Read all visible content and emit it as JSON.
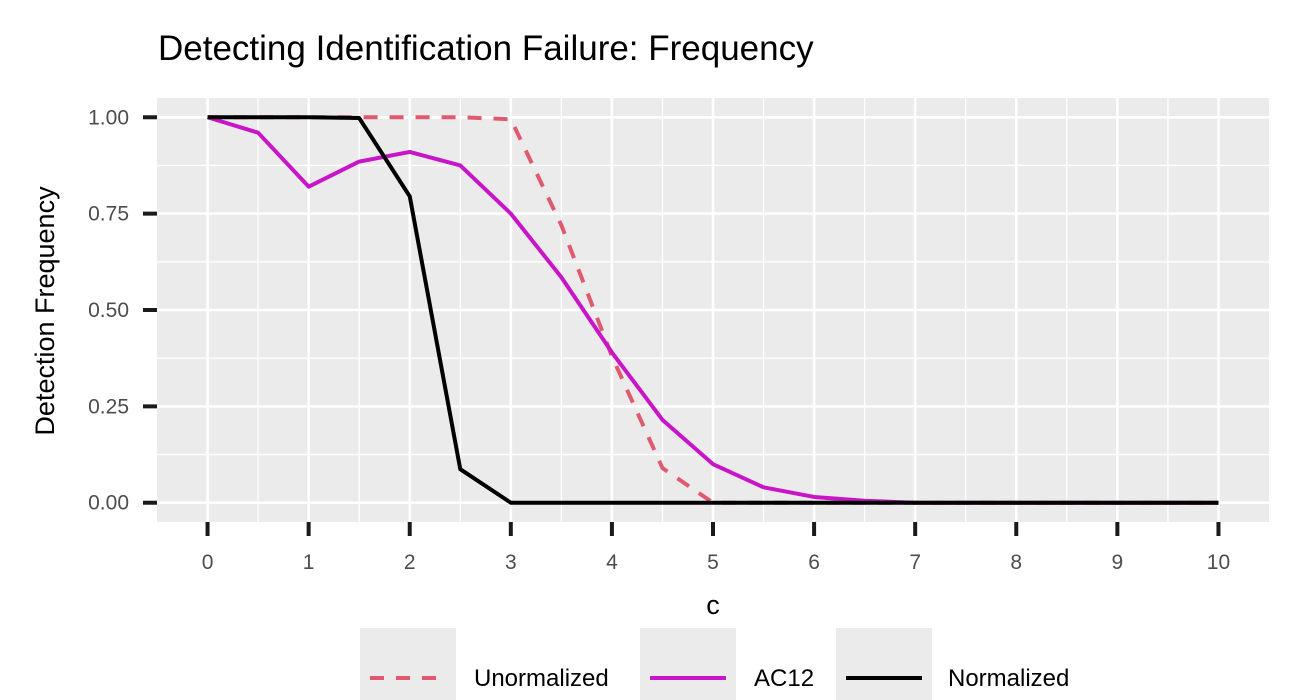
{
  "chart_data": {
    "type": "line",
    "title": "Detecting Identification Failure: Frequency",
    "xlabel": "c",
    "ylabel": "Detection Frequency",
    "xlim": [
      -0.5,
      10.5
    ],
    "ylim": [
      -0.05,
      1.05
    ],
    "x_ticks": [
      0,
      1,
      2,
      3,
      4,
      5,
      6,
      7,
      8,
      9,
      10
    ],
    "x_tick_labels": [
      "0",
      "1",
      "2",
      "3",
      "4",
      "5",
      "6",
      "7",
      "8",
      "9",
      "10"
    ],
    "y_ticks": [
      0,
      0.25,
      0.5,
      0.75,
      1.0
    ],
    "y_tick_labels": [
      "0.00",
      "0.25",
      "0.50",
      "0.75",
      "1.00"
    ],
    "grid": true,
    "legend_position": "bottom",
    "x": [
      0,
      0.5,
      1,
      1.5,
      2,
      2.5,
      3,
      3.5,
      4,
      4.5,
      5,
      5.5,
      6,
      6.5,
      7,
      7.5,
      8,
      8.5,
      9,
      9.5,
      10
    ],
    "series": [
      {
        "name": "Unormalized",
        "color": "#e05a6f",
        "dash": "dashed",
        "values": [
          1.0,
          1.0,
          1.0,
          1.0,
          1.0,
          1.0,
          0.995,
          0.72,
          0.38,
          0.09,
          0.0,
          0.0,
          0.0,
          0.0,
          0.0,
          0.0,
          0.0,
          0.0,
          0.0,
          0.0,
          0.0
        ]
      },
      {
        "name": "AC12",
        "color": "#c715c7",
        "dash": "solid",
        "values": [
          1.0,
          0.96,
          0.82,
          0.885,
          0.91,
          0.875,
          0.75,
          0.585,
          0.39,
          0.215,
          0.1,
          0.04,
          0.015,
          0.005,
          0.0,
          0.0,
          0.0,
          0.0,
          0.0,
          0.0,
          0.0
        ]
      },
      {
        "name": "Normalized",
        "color": "#000000",
        "dash": "solid",
        "values": [
          1.0,
          1.0,
          1.0,
          0.998,
          0.795,
          0.087,
          0.0,
          0.0,
          0.0,
          0.0,
          0.0,
          0.0,
          0.0,
          0.0,
          0.0,
          0.0,
          0.0,
          0.0,
          0.0,
          0.0,
          0.0
        ]
      }
    ]
  }
}
